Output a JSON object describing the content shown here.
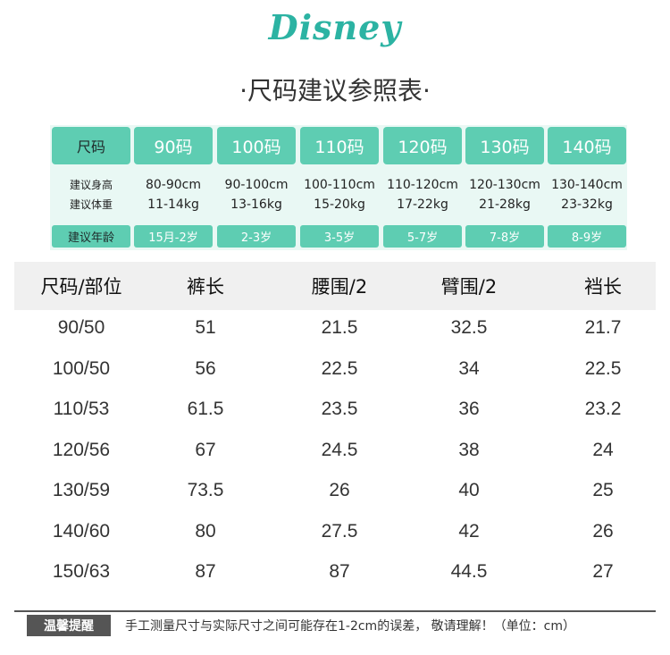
{
  "logo": "Disney",
  "title": "·尺码建议参照表·",
  "suggest": {
    "header_label": "尺码",
    "height_label": "建议身高",
    "weight_label": "建议体重",
    "age_label": "建议年龄",
    "sizes": [
      {
        "size": "90码",
        "height": "80-90cm",
        "weight": "11-14kg",
        "age": "15月-2岁"
      },
      {
        "size": "100码",
        "height": "90-100cm",
        "weight": "13-16kg",
        "age": "2-3岁"
      },
      {
        "size": "110码",
        "height": "100-110cm",
        "weight": "15-20kg",
        "age": "3-5岁"
      },
      {
        "size": "120码",
        "height": "110-120cm",
        "weight": "17-22kg",
        "age": "5-7岁"
      },
      {
        "size": "130码",
        "height": "120-130cm",
        "weight": "21-28kg",
        "age": "7-8岁"
      },
      {
        "size": "140码",
        "height": "130-140cm",
        "weight": "23-32kg",
        "age": "8-9岁"
      }
    ]
  },
  "measure": {
    "columns": [
      "尺码/部位",
      "裤长",
      "腰围/2",
      "臂围/2",
      "裆长"
    ],
    "rows": [
      [
        "90/50",
        "51",
        "21.5",
        "32.5",
        "21.7"
      ],
      [
        "100/50",
        "56",
        "22.5",
        "34",
        "22.5"
      ],
      [
        "110/53",
        "61.5",
        "23.5",
        "36",
        "23.2"
      ],
      [
        "120/56",
        "67",
        "24.5",
        "38",
        "24"
      ],
      [
        "130/59",
        "73.5",
        "26",
        "40",
        "25"
      ],
      [
        "140/60",
        "80",
        "27.5",
        "42",
        "26"
      ],
      [
        "150/63",
        "87",
        "87",
        "44.5",
        "27"
      ]
    ]
  },
  "footer": {
    "badge": "温馨提醒",
    "text": "手工测量尺寸与实际尺寸之间可能存在1-2cm的误差， 敬请理解！（单位：cm）"
  },
  "colors": {
    "accent": "#5ecdb2",
    "panel": "#e9f8f4",
    "logo": "#2cb3a3"
  }
}
